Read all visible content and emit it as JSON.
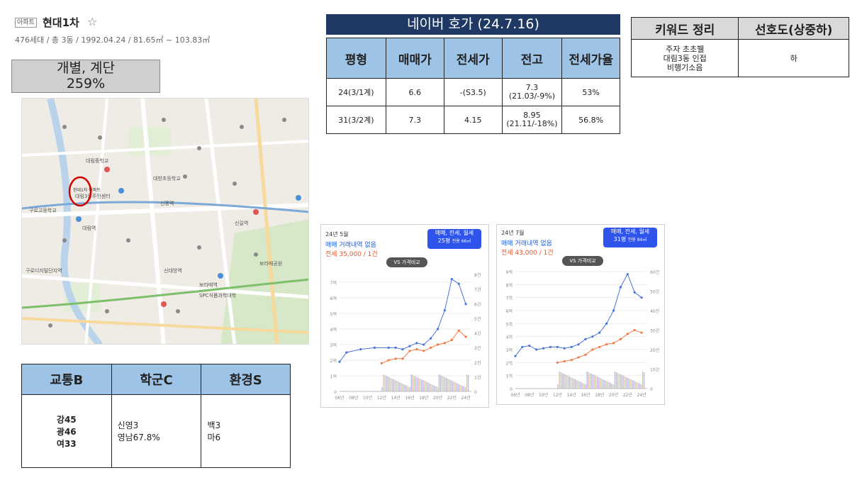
{
  "header": {
    "tag": "아파트",
    "name": "현대1차",
    "star": "☆",
    "sub": "476세대 / 총 3동 / 1992.04.24 / 81.65㎡ ~ 103.83㎡"
  },
  "summary_box": {
    "line1": "개별, 계단",
    "line2": "259%"
  },
  "price_table": {
    "title": "네이버 호가 (24.7.16)",
    "headers": [
      "평형",
      "매매가",
      "전세가",
      "전고",
      "전세가율"
    ],
    "rows": [
      {
        "type": "24(3/1계)",
        "sale": "6.6",
        "lease": "-(S3.5)",
        "peak": "7.3",
        "peak_note": "(21.03/-9%)",
        "ratio": "53%"
      },
      {
        "type": "31(3/2계)",
        "sale": "7.3",
        "lease": "4.15",
        "peak": "8.95",
        "peak_note": "(21.11/-18%)",
        "ratio": "56.8%"
      }
    ]
  },
  "keyword_table": {
    "headers": [
      "키워드 정리",
      "선호도(상중하)"
    ],
    "keywords": [
      "주자 초초뷀",
      "대림3동 인접",
      "비행기소음"
    ],
    "preference": "하"
  },
  "grade_table": {
    "headers": [
      "교통B",
      "학군C",
      "환경S"
    ],
    "traffic": [
      "강45",
      "광46",
      "여33"
    ],
    "school": [
      "신영3",
      "영남67.8%"
    ],
    "env": [
      "백3",
      "마6"
    ]
  },
  "map": {
    "highlight_label": "현대1차 아파트",
    "highlight_color": "#d40000",
    "labels": [
      "구로고등학교",
      "대림중학교",
      "대방초등학교",
      "신대방역",
      "대림역",
      "신길역",
      "보라매역",
      "구로디지털단지역",
      "신풍역",
      "대림3동주민센터",
      "SPC식품과학대학",
      "보라매공원"
    ]
  },
  "charts": {
    "chart_data": [
      {
        "type": "line",
        "title": "",
        "date": "24년 5월",
        "status": "매매 거래내역 없음",
        "lease_text": "전세 35,000 / 1건",
        "filter": "매매, 전세, 월세",
        "size": "25평",
        "size_sub": "전용 66㎡",
        "compare": "VS 가격비교",
        "x_ticks": [
          "06년",
          "08년",
          "10년",
          "12년",
          "14년",
          "16년",
          "18년",
          "20년",
          "22년",
          "24년"
        ],
        "y_ticks": [
          "0",
          "1억",
          "2억",
          "3억",
          "4억",
          "5억",
          "6억",
          "7억"
        ],
        "y2_ticks": [
          "0",
          "1건",
          "2건",
          "3건",
          "4건",
          "5건",
          "6건",
          "7건",
          "8건"
        ],
        "ylim": [
          0,
          7.5
        ],
        "series": [
          {
            "color": "#4a74d9",
            "x": [
              2006,
              2007,
              2009,
              2011,
              2013,
              2014,
              2015,
              2016,
              2017,
              2018,
              2019,
              2020,
              2021,
              2022,
              2023,
              2024
            ],
            "values": [
              1.9,
              2.5,
              2.7,
              2.8,
              2.8,
              2.8,
              2.7,
              2.9,
              3.1,
              3.0,
              3.4,
              4.0,
              5.2,
              7.2,
              6.9,
              5.6
            ]
          },
          {
            "color": "#f07a45",
            "x": [
              2012,
              2013,
              2014,
              2015,
              2016,
              2017,
              2018,
              2019,
              2020,
              2021,
              2022,
              2023,
              2024
            ],
            "values": [
              1.8,
              2.0,
              2.1,
              2.1,
              2.6,
              2.7,
              2.6,
              2.8,
              3.0,
              3.1,
              3.3,
              3.9,
              3.5
            ]
          }
        ]
      },
      {
        "type": "line",
        "title": "",
        "date": "24년 7월",
        "status": "매매 거래내역 없음",
        "lease_text": "전세 43,000 / 1건",
        "filter": "매매, 전세, 월세",
        "size": "31평",
        "size_sub": "전용 84㎡",
        "compare": "VS 가격비교",
        "x_ticks": [
          "06년",
          "08년",
          "10년",
          "12년",
          "14년",
          "16년",
          "18년",
          "20년",
          "22년",
          "24년"
        ],
        "y_ticks": [
          "0",
          "1억",
          "2억",
          "3억",
          "4억",
          "5억",
          "6억",
          "7억",
          "8억",
          "9억"
        ],
        "y2_ticks": [
          "0",
          "10건",
          "20건",
          "30건",
          "40건",
          "50건",
          "60건"
        ],
        "ylim": [
          0,
          9
        ],
        "series": [
          {
            "color": "#4a74d9",
            "x": [
              2006,
              2007,
              2008,
              2009,
              2010,
              2011,
              2012,
              2013,
              2014,
              2015,
              2016,
              2017,
              2018,
              2019,
              2020,
              2021,
              2022,
              2023,
              2024
            ],
            "values": [
              2.5,
              3.2,
              3.3,
              3.0,
              3.1,
              3.2,
              3.2,
              3.1,
              3.2,
              3.4,
              3.8,
              4.0,
              4.3,
              5.0,
              6.0,
              7.8,
              8.8,
              7.4,
              7.0
            ]
          },
          {
            "color": "#f07a45",
            "x": [
              2012,
              2013,
              2014,
              2015,
              2016,
              2017,
              2018,
              2019,
              2020,
              2021,
              2022,
              2023,
              2024
            ],
            "values": [
              2.0,
              2.1,
              2.2,
              2.4,
              2.6,
              3.0,
              3.2,
              3.4,
              3.5,
              3.8,
              4.2,
              4.5,
              4.3
            ]
          }
        ]
      }
    ]
  }
}
